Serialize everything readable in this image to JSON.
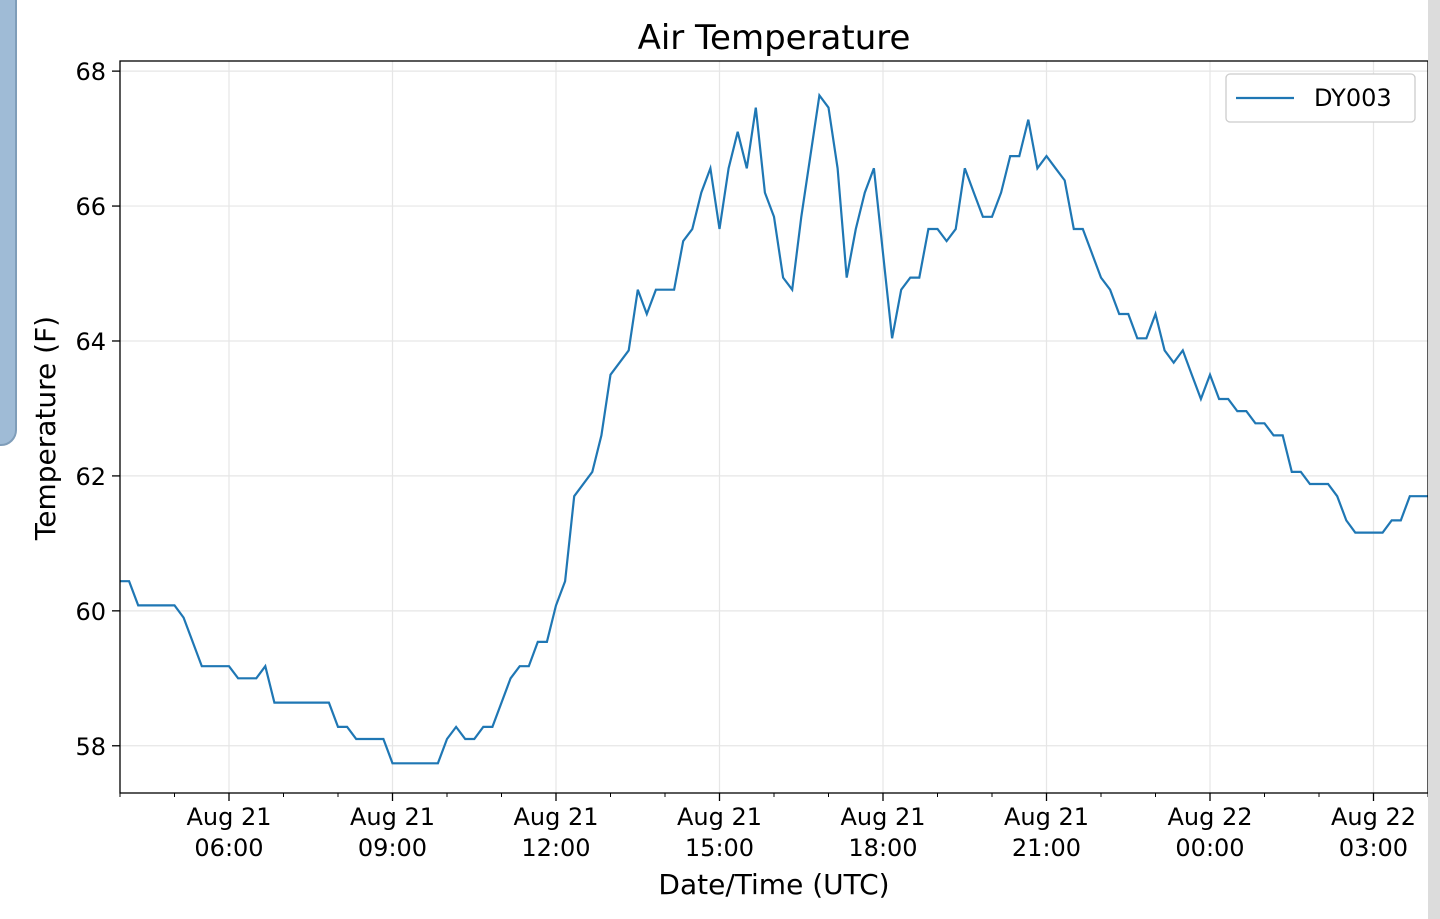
{
  "chart_data": {
    "type": "line",
    "title": "Air Temperature",
    "xlabel": "Date/Time (UTC)",
    "ylabel": "Temperature (F)",
    "xlim": [
      "2021-08-21T04:00",
      "2021-08-22T04:00"
    ],
    "ylim": [
      57.3,
      68.15
    ],
    "yticks": [
      58,
      60,
      62,
      64,
      66,
      68
    ],
    "xticks": [
      {
        "t": "2021-08-21T06:00",
        "line1": "Aug 21",
        "line2": "06:00"
      },
      {
        "t": "2021-08-21T09:00",
        "line1": "Aug 21",
        "line2": "09:00"
      },
      {
        "t": "2021-08-21T12:00",
        "line1": "Aug 21",
        "line2": "12:00"
      },
      {
        "t": "2021-08-21T15:00",
        "line1": "Aug 21",
        "line2": "15:00"
      },
      {
        "t": "2021-08-21T18:00",
        "line1": "Aug 21",
        "line2": "18:00"
      },
      {
        "t": "2021-08-21T21:00",
        "line1": "Aug 21",
        "line2": "21:00"
      },
      {
        "t": "2021-08-22T00:00",
        "line1": "Aug 22",
        "line2": "00:00"
      },
      {
        "t": "2021-08-22T03:00",
        "line1": "Aug 22",
        "line2": "03:00"
      }
    ],
    "grid": true,
    "legend_position": "top-right",
    "series": [
      {
        "name": "DY003",
        "color": "#1f77b4",
        "points": [
          [
            "2021-08-21T04:00",
            60.44
          ],
          [
            "2021-08-21T04:10",
            60.44
          ],
          [
            "2021-08-21T04:20",
            60.08
          ],
          [
            "2021-08-21T05:00",
            60.08
          ],
          [
            "2021-08-21T05:10",
            59.9
          ],
          [
            "2021-08-21T05:30",
            59.18
          ],
          [
            "2021-08-21T06:00",
            59.18
          ],
          [
            "2021-08-21T06:10",
            59.0
          ],
          [
            "2021-08-21T06:30",
            59.0
          ],
          [
            "2021-08-21T06:40",
            59.18
          ],
          [
            "2021-08-21T06:50",
            58.64
          ],
          [
            "2021-08-21T07:50",
            58.64
          ],
          [
            "2021-08-21T08:00",
            58.28
          ],
          [
            "2021-08-21T08:10",
            58.28
          ],
          [
            "2021-08-21T08:20",
            58.1
          ],
          [
            "2021-08-21T08:50",
            58.1
          ],
          [
            "2021-08-21T09:00",
            57.74
          ],
          [
            "2021-08-21T09:50",
            57.74
          ],
          [
            "2021-08-21T10:00",
            58.1
          ],
          [
            "2021-08-21T10:10",
            58.28
          ],
          [
            "2021-08-21T10:20",
            58.1
          ],
          [
            "2021-08-21T10:30",
            58.1
          ],
          [
            "2021-08-21T10:40",
            58.28
          ],
          [
            "2021-08-21T10:50",
            58.28
          ],
          [
            "2021-08-21T11:00",
            58.64
          ],
          [
            "2021-08-21T11:10",
            59.0
          ],
          [
            "2021-08-21T11:20",
            59.18
          ],
          [
            "2021-08-21T11:30",
            59.18
          ],
          [
            "2021-08-21T11:40",
            59.54
          ],
          [
            "2021-08-21T11:50",
            59.54
          ],
          [
            "2021-08-21T12:00",
            60.08
          ],
          [
            "2021-08-21T12:10",
            60.44
          ],
          [
            "2021-08-21T12:20",
            61.7
          ],
          [
            "2021-08-21T12:40",
            62.06
          ],
          [
            "2021-08-21T12:50",
            62.6
          ],
          [
            "2021-08-21T13:00",
            63.5
          ],
          [
            "2021-08-21T13:20",
            63.86
          ],
          [
            "2021-08-21T13:30",
            64.76
          ],
          [
            "2021-08-21T13:40",
            64.4
          ],
          [
            "2021-08-21T13:50",
            64.76
          ],
          [
            "2021-08-21T14:10",
            64.76
          ],
          [
            "2021-08-21T14:20",
            65.48
          ],
          [
            "2021-08-21T14:30",
            65.66
          ],
          [
            "2021-08-21T14:40",
            66.2
          ],
          [
            "2021-08-21T14:50",
            66.56
          ],
          [
            "2021-08-21T15:00",
            65.66
          ],
          [
            "2021-08-21T15:10",
            66.56
          ],
          [
            "2021-08-21T15:20",
            67.1
          ],
          [
            "2021-08-21T15:30",
            66.56
          ],
          [
            "2021-08-21T15:40",
            67.46
          ],
          [
            "2021-08-21T15:50",
            66.2
          ],
          [
            "2021-08-21T16:00",
            65.84
          ],
          [
            "2021-08-21T16:10",
            64.94
          ],
          [
            "2021-08-21T16:20",
            64.76
          ],
          [
            "2021-08-21T16:30",
            65.84
          ],
          [
            "2021-08-21T16:50",
            67.64
          ],
          [
            "2021-08-21T17:00",
            67.46
          ],
          [
            "2021-08-21T17:10",
            66.56
          ],
          [
            "2021-08-21T17:20",
            64.94
          ],
          [
            "2021-08-21T17:30",
            65.66
          ],
          [
            "2021-08-21T17:40",
            66.2
          ],
          [
            "2021-08-21T17:50",
            66.56
          ],
          [
            "2021-08-21T18:00",
            65.3
          ],
          [
            "2021-08-21T18:10",
            64.04
          ],
          [
            "2021-08-21T18:20",
            64.76
          ],
          [
            "2021-08-21T18:30",
            64.94
          ],
          [
            "2021-08-21T18:40",
            64.94
          ],
          [
            "2021-08-21T18:50",
            65.66
          ],
          [
            "2021-08-21T19:00",
            65.66
          ],
          [
            "2021-08-21T19:10",
            65.48
          ],
          [
            "2021-08-21T19:20",
            65.66
          ],
          [
            "2021-08-21T19:30",
            66.56
          ],
          [
            "2021-08-21T19:40",
            66.2
          ],
          [
            "2021-08-21T19:50",
            65.84
          ],
          [
            "2021-08-21T20:00",
            65.84
          ],
          [
            "2021-08-21T20:10",
            66.2
          ],
          [
            "2021-08-21T20:20",
            66.74
          ],
          [
            "2021-08-21T20:30",
            66.74
          ],
          [
            "2021-08-21T20:40",
            67.28
          ],
          [
            "2021-08-21T20:50",
            66.56
          ],
          [
            "2021-08-21T21:00",
            66.74
          ],
          [
            "2021-08-21T21:10",
            66.56
          ],
          [
            "2021-08-21T21:20",
            66.38
          ],
          [
            "2021-08-21T21:30",
            65.66
          ],
          [
            "2021-08-21T21:40",
            65.66
          ],
          [
            "2021-08-21T21:50",
            65.3
          ],
          [
            "2021-08-21T22:00",
            64.94
          ],
          [
            "2021-08-21T22:10",
            64.76
          ],
          [
            "2021-08-21T22:20",
            64.4
          ],
          [
            "2021-08-21T22:30",
            64.4
          ],
          [
            "2021-08-21T22:40",
            64.04
          ],
          [
            "2021-08-21T22:50",
            64.04
          ],
          [
            "2021-08-21T23:00",
            64.4
          ],
          [
            "2021-08-21T23:10",
            63.86
          ],
          [
            "2021-08-21T23:20",
            63.68
          ],
          [
            "2021-08-21T23:30",
            63.86
          ],
          [
            "2021-08-21T23:40",
            63.5
          ],
          [
            "2021-08-21T23:50",
            63.14
          ],
          [
            "2021-08-22T00:00",
            63.5
          ],
          [
            "2021-08-22T00:10",
            63.14
          ],
          [
            "2021-08-22T00:20",
            63.14
          ],
          [
            "2021-08-22T00:30",
            62.96
          ],
          [
            "2021-08-22T00:40",
            62.96
          ],
          [
            "2021-08-22T00:50",
            62.78
          ],
          [
            "2021-08-22T01:00",
            62.78
          ],
          [
            "2021-08-22T01:10",
            62.6
          ],
          [
            "2021-08-22T01:20",
            62.6
          ],
          [
            "2021-08-22T01:30",
            62.06
          ],
          [
            "2021-08-22T01:40",
            62.06
          ],
          [
            "2021-08-22T01:50",
            61.88
          ],
          [
            "2021-08-22T02:10",
            61.88
          ],
          [
            "2021-08-22T02:20",
            61.7
          ],
          [
            "2021-08-22T02:30",
            61.34
          ],
          [
            "2021-08-22T02:40",
            61.16
          ],
          [
            "2021-08-22T03:10",
            61.16
          ],
          [
            "2021-08-22T03:20",
            61.34
          ],
          [
            "2021-08-22T03:30",
            61.34
          ],
          [
            "2021-08-22T03:40",
            61.7
          ],
          [
            "2021-08-22T04:00",
            61.7
          ]
        ]
      }
    ]
  }
}
